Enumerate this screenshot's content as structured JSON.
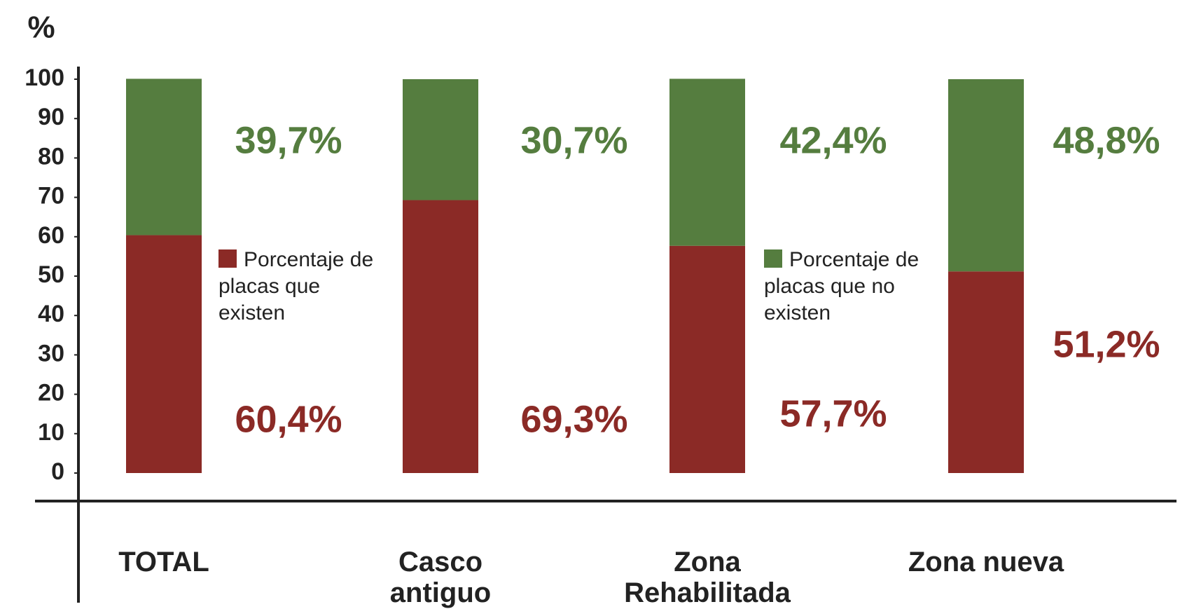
{
  "chart_data": {
    "type": "stacked_bar",
    "y_label": "%",
    "categories": [
      "TOTAL",
      "Casco antiguo",
      "Zona Rehabilitada",
      "Zona nueva"
    ],
    "series": [
      {
        "name": "Porcentaje de placas que existen",
        "color": "#8b2a26",
        "values": [
          60.4,
          69.3,
          57.7,
          51.2
        ],
        "value_labels": [
          "60,4%",
          "69,3%",
          "57,7%",
          "51,2%"
        ]
      },
      {
        "name": "Porcentaje de placas que no existen",
        "color": "#557d3f",
        "values": [
          39.7,
          30.7,
          42.4,
          48.8
        ],
        "value_labels": [
          "39,7%",
          "30,7%",
          "42,4%",
          "48,8%"
        ]
      }
    ],
    "ylim": [
      0,
      100
    ],
    "yticks": [
      0,
      10,
      20,
      30,
      40,
      50,
      60,
      70,
      80,
      90,
      100
    ]
  }
}
